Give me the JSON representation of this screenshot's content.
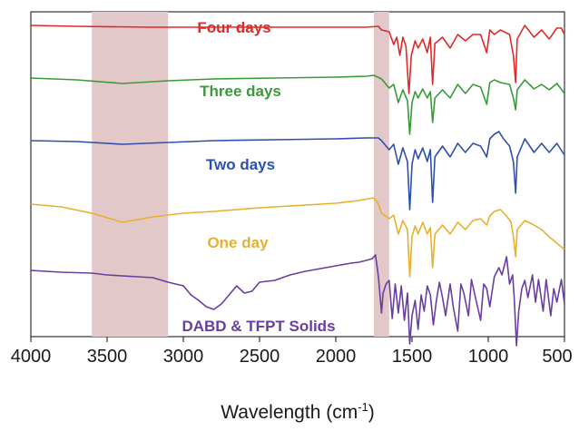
{
  "chart_data": {
    "type": "line",
    "title": "",
    "xlabel": "Wavelength (cm",
    "xlabel_sup": "-1",
    "xlabel_close": ")",
    "ylabel": "",
    "xlim": [
      4000,
      500
    ],
    "x_reversed": true,
    "x_ticks": [
      4000,
      3500,
      3000,
      2500,
      2000,
      1500,
      1000,
      500
    ],
    "x_tick_labels": [
      "4000",
      "3500",
      "3000",
      "2500",
      "2000",
      "1500",
      "1000",
      "500"
    ],
    "y_ticks_shown": false,
    "grid": false,
    "highlight_bands": [
      [
        3600,
        3100
      ],
      [
        1750,
        1650
      ]
    ],
    "highlight_color": "#e2c8c9",
    "series": [
      {
        "name": "Four days",
        "color": "#e02a2a",
        "points": [
          [
            4000,
            15
          ],
          [
            3700,
            16
          ],
          [
            3200,
            17
          ],
          [
            2500,
            17
          ],
          [
            2000,
            17
          ],
          [
            1800,
            17
          ],
          [
            1720,
            16
          ],
          [
            1700,
            20
          ],
          [
            1650,
            22
          ],
          [
            1620,
            36
          ],
          [
            1600,
            28
          ],
          [
            1580,
            48
          ],
          [
            1560,
            28
          ],
          [
            1540,
            38
          ],
          [
            1520,
            90
          ],
          [
            1505,
            48
          ],
          [
            1480,
            32
          ],
          [
            1460,
            40
          ],
          [
            1430,
            30
          ],
          [
            1400,
            45
          ],
          [
            1380,
            28
          ],
          [
            1365,
            80
          ],
          [
            1350,
            35
          ],
          [
            1300,
            28
          ],
          [
            1250,
            40
          ],
          [
            1200,
            25
          ],
          [
            1150,
            32
          ],
          [
            1100,
            25
          ],
          [
            1050,
            25
          ],
          [
            1010,
            45
          ],
          [
            990,
            20
          ],
          [
            960,
            25
          ],
          [
            920,
            20
          ],
          [
            860,
            25
          ],
          [
            835,
            48
          ],
          [
            820,
            78
          ],
          [
            810,
            30
          ],
          [
            760,
            15
          ],
          [
            700,
            28
          ],
          [
            650,
            20
          ],
          [
            600,
            30
          ],
          [
            550,
            18
          ],
          [
            520,
            18
          ],
          [
            500,
            25
          ]
        ]
      },
      {
        "name": "Three days",
        "color": "#3a9a3a",
        "points": [
          [
            4000,
            73
          ],
          [
            3700,
            75
          ],
          [
            3400,
            79
          ],
          [
            3100,
            76
          ],
          [
            2800,
            74
          ],
          [
            2400,
            73
          ],
          [
            2000,
            72
          ],
          [
            1800,
            71
          ],
          [
            1750,
            70
          ],
          [
            1700,
            74
          ],
          [
            1650,
            84
          ],
          [
            1620,
            80
          ],
          [
            1590,
            100
          ],
          [
            1560,
            86
          ],
          [
            1530,
            98
          ],
          [
            1515,
            135
          ],
          [
            1500,
            100
          ],
          [
            1480,
            88
          ],
          [
            1460,
            95
          ],
          [
            1430,
            85
          ],
          [
            1400,
            95
          ],
          [
            1380,
            88
          ],
          [
            1365,
            122
          ],
          [
            1350,
            95
          ],
          [
            1300,
            86
          ],
          [
            1250,
            95
          ],
          [
            1200,
            80
          ],
          [
            1150,
            90
          ],
          [
            1100,
            80
          ],
          [
            1050,
            83
          ],
          [
            1010,
            102
          ],
          [
            990,
            78
          ],
          [
            960,
            75
          ],
          [
            920,
            78
          ],
          [
            860,
            80
          ],
          [
            835,
            95
          ],
          [
            820,
            108
          ],
          [
            810,
            86
          ],
          [
            760,
            75
          ],
          [
            700,
            85
          ],
          [
            650,
            80
          ],
          [
            600,
            86
          ],
          [
            550,
            79
          ],
          [
            500,
            90
          ]
        ]
      },
      {
        "name": "Two days",
        "color": "#2e4fab",
        "points": [
          [
            4000,
            142
          ],
          [
            3700,
            143
          ],
          [
            3400,
            146
          ],
          [
            3100,
            144
          ],
          [
            2800,
            142
          ],
          [
            2400,
            141
          ],
          [
            2000,
            140
          ],
          [
            1800,
            139
          ],
          [
            1720,
            139
          ],
          [
            1700,
            142
          ],
          [
            1650,
            152
          ],
          [
            1620,
            146
          ],
          [
            1590,
            168
          ],
          [
            1560,
            150
          ],
          [
            1530,
            165
          ],
          [
            1515,
            218
          ],
          [
            1500,
            168
          ],
          [
            1480,
            152
          ],
          [
            1460,
            162
          ],
          [
            1430,
            150
          ],
          [
            1400,
            165
          ],
          [
            1380,
            152
          ],
          [
            1365,
            210
          ],
          [
            1350,
            160
          ],
          [
            1300,
            148
          ],
          [
            1250,
            160
          ],
          [
            1200,
            145
          ],
          [
            1150,
            155
          ],
          [
            1100,
            145
          ],
          [
            1050,
            148
          ],
          [
            1010,
            160
          ],
          [
            990,
            140
          ],
          [
            960,
            135
          ],
          [
            930,
            132
          ],
          [
            900,
            140
          ],
          [
            860,
            148
          ],
          [
            835,
            165
          ],
          [
            820,
            200
          ],
          [
            810,
            160
          ],
          [
            760,
            140
          ],
          [
            700,
            155
          ],
          [
            650,
            145
          ],
          [
            600,
            155
          ],
          [
            550,
            145
          ],
          [
            500,
            158
          ]
        ]
      },
      {
        "name": "One day",
        "color": "#e8b02e",
        "points": [
          [
            4000,
            212
          ],
          [
            3800,
            215
          ],
          [
            3600,
            222
          ],
          [
            3400,
            232
          ],
          [
            3200,
            226
          ],
          [
            3000,
            222
          ],
          [
            2800,
            220
          ],
          [
            2500,
            216
          ],
          [
            2200,
            213
          ],
          [
            2000,
            211
          ],
          [
            1850,
            208
          ],
          [
            1750,
            205
          ],
          [
            1720,
            212
          ],
          [
            1700,
            222
          ],
          [
            1650,
            228
          ],
          [
            1620,
            224
          ],
          [
            1590,
            245
          ],
          [
            1560,
            230
          ],
          [
            1530,
            240
          ],
          [
            1515,
            292
          ],
          [
            1500,
            248
          ],
          [
            1480,
            236
          ],
          [
            1460,
            245
          ],
          [
            1430,
            232
          ],
          [
            1400,
            245
          ],
          [
            1380,
            238
          ],
          [
            1365,
            282
          ],
          [
            1350,
            245
          ],
          [
            1300,
            235
          ],
          [
            1250,
            245
          ],
          [
            1200,
            232
          ],
          [
            1150,
            240
          ],
          [
            1100,
            230
          ],
          [
            1050,
            228
          ],
          [
            1010,
            235
          ],
          [
            990,
            225
          ],
          [
            960,
            220
          ],
          [
            920,
            218
          ],
          [
            880,
            225
          ],
          [
            850,
            232
          ],
          [
            835,
            248
          ],
          [
            820,
            270
          ],
          [
            810,
            240
          ],
          [
            760,
            230
          ],
          [
            700,
            235
          ],
          [
            650,
            240
          ],
          [
            600,
            248
          ],
          [
            550,
            255
          ],
          [
            500,
            262
          ]
        ]
      },
      {
        "name": "DABD & TFPT Solids",
        "color": "#6a3ea1",
        "points": [
          [
            4000,
            285
          ],
          [
            3800,
            287
          ],
          [
            3600,
            288
          ],
          [
            3500,
            290
          ],
          [
            3300,
            292
          ],
          [
            3200,
            293
          ],
          [
            3100,
            298
          ],
          [
            3000,
            302
          ],
          [
            2950,
            312
          ],
          [
            2900,
            318
          ],
          [
            2850,
            325
          ],
          [
            2800,
            328
          ],
          [
            2750,
            322
          ],
          [
            2700,
            312
          ],
          [
            2650,
            302
          ],
          [
            2600,
            310
          ],
          [
            2550,
            308
          ],
          [
            2500,
            298
          ],
          [
            2400,
            296
          ],
          [
            2300,
            290
          ],
          [
            2200,
            286
          ],
          [
            2100,
            283
          ],
          [
            2000,
            280
          ],
          [
            1900,
            277
          ],
          [
            1850,
            276
          ],
          [
            1800,
            274
          ],
          [
            1760,
            272
          ],
          [
            1740,
            268
          ],
          [
            1720,
            292
          ],
          [
            1700,
            332
          ],
          [
            1690,
            310
          ],
          [
            1670,
            300
          ],
          [
            1650,
            296
          ],
          [
            1630,
            338
          ],
          [
            1610,
            300
          ],
          [
            1590,
            332
          ],
          [
            1570,
            302
          ],
          [
            1550,
            340
          ],
          [
            1530,
            310
          ],
          [
            1515,
            366
          ],
          [
            1500,
            335
          ],
          [
            1480,
            318
          ],
          [
            1460,
            350
          ],
          [
            1440,
            312
          ],
          [
            1420,
            330
          ],
          [
            1400,
            302
          ],
          [
            1380,
            312
          ],
          [
            1360,
            345
          ],
          [
            1340,
            318
          ],
          [
            1320,
            298
          ],
          [
            1300,
            315
          ],
          [
            1280,
            335
          ],
          [
            1250,
            300
          ],
          [
            1230,
            325
          ],
          [
            1200,
            352
          ],
          [
            1180,
            300
          ],
          [
            1160,
            310
          ],
          [
            1130,
            335
          ],
          [
            1110,
            295
          ],
          [
            1080,
            318
          ],
          [
            1050,
            340
          ],
          [
            1030,
            300
          ],
          [
            1010,
            305
          ],
          [
            990,
            325
          ],
          [
            960,
            292
          ],
          [
            930,
            282
          ],
          [
            910,
            290
          ],
          [
            880,
            270
          ],
          [
            860,
            300
          ],
          [
            840,
            290
          ],
          [
            830,
            315
          ],
          [
            815,
            368
          ],
          [
            800,
            330
          ],
          [
            780,
            305
          ],
          [
            760,
            296
          ],
          [
            740,
            315
          ],
          [
            710,
            290
          ],
          [
            690,
            320
          ],
          [
            670,
            295
          ],
          [
            640,
            330
          ],
          [
            620,
            295
          ],
          [
            590,
            335
          ],
          [
            570,
            305
          ],
          [
            550,
            320
          ],
          [
            520,
            295
          ],
          [
            500,
            322
          ]
        ]
      }
    ],
    "series_labels": [
      {
        "text": "Four days",
        "color": "#e02a2a"
      },
      {
        "text": "Three days",
        "color": "#3a9a3a"
      },
      {
        "text": "Two days",
        "color": "#2e4fab"
      },
      {
        "text": "One day",
        "color": "#e8b02e"
      },
      {
        "text": "DABD & TFPT Solids",
        "color": "#6a3ea1"
      }
    ]
  }
}
